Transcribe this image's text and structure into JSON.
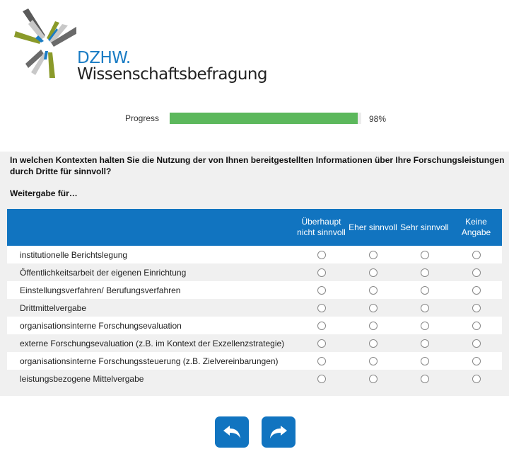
{
  "logo": {
    "line1": "DZHW.",
    "line2": "Wissenschaftsbefragung"
  },
  "progress": {
    "label": "Progress",
    "value": 98,
    "display": "98%",
    "color": "#5cb85c"
  },
  "question": {
    "text": "In welchen Kontexten halten Sie die Nutzung der von Ihnen bereitgestellten Informationen über Ihre Forschungsleistungen durch Dritte für sinnvoll?",
    "subtext": "Weitergabe für…"
  },
  "matrix": {
    "columns": [
      "Überhaupt nicht sinnvoll",
      "Eher sinnvoll",
      "Sehr sinnvoll",
      "Keine Angabe"
    ],
    "rows": [
      "institutionelle Berichtslegung",
      "Öffentlichkeitsarbeit der eigenen Einrichtung",
      "Einstellungsverfahren/ Berufungsverfahren",
      "Drittmittelvergabe",
      "organisationsinterne Forschungsevaluation",
      "externe Forschungsevaluation (z.B. im Kontext der Exzellenzstrategie)",
      "organisationsinterne Forschungssteuerung (z.B. Zielvereinbarungen)",
      "leistungsbezogene Mittelvergabe"
    ],
    "header_color": "#1174c0"
  },
  "navigation": {
    "back_icon": "undo-arrow-icon",
    "next_icon": "redo-arrow-icon"
  }
}
